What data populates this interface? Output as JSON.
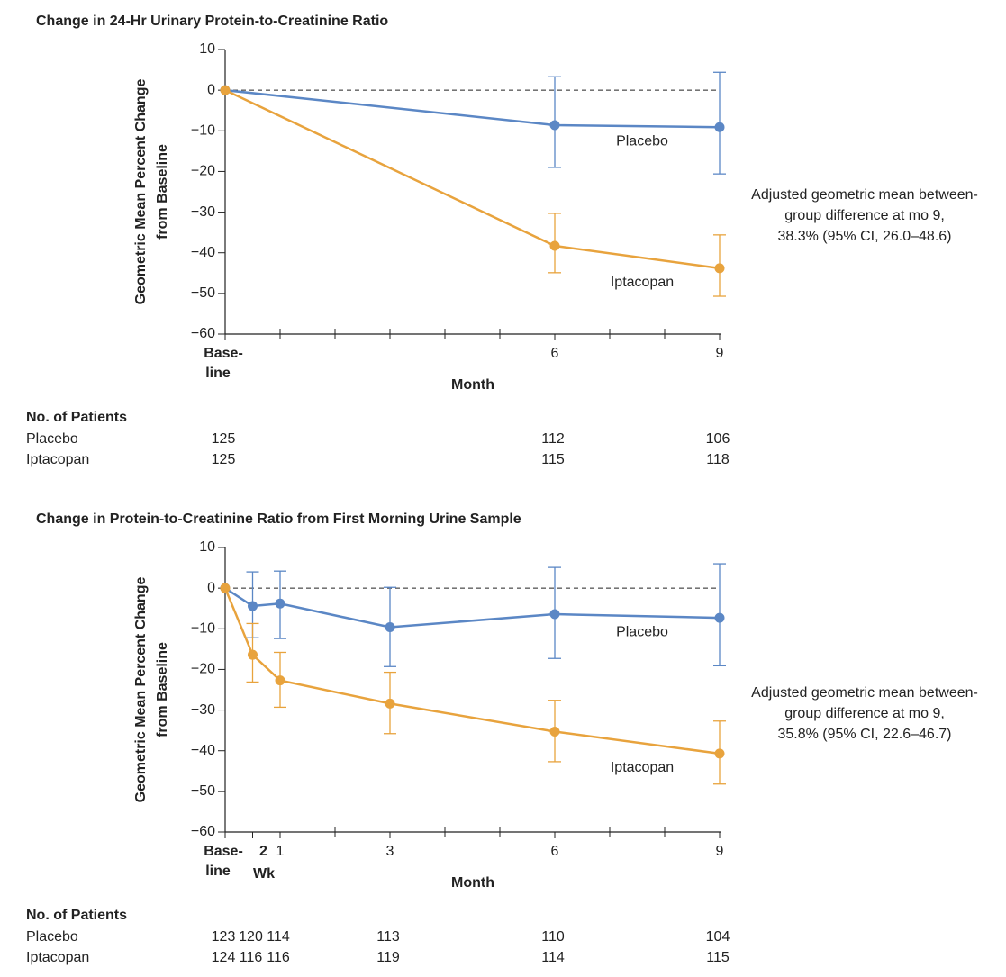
{
  "chart_data": [
    {
      "type": "line",
      "title": "Change in 24-Hr Urinary Protein-to-Creatinine Ratio",
      "ylabel": [
        "Geometric Mean Percent Change",
        "from Baseline"
      ],
      "xlabel": "Month",
      "xlim": [
        0,
        9
      ],
      "ylim": [
        -60,
        10
      ],
      "yticks": [
        10,
        0,
        {
          "value": -10,
          "label": "−10"
        },
        {
          "value": -20,
          "label": "−20"
        },
        {
          "value": -30,
          "label": "−30"
        },
        {
          "value": -40,
          "label": "−40"
        },
        {
          "value": -50,
          "label": "−50"
        },
        {
          "value": -60,
          "label": "−60"
        }
      ],
      "xticks": [
        {
          "value": 0,
          "label": [
            "Base-",
            "line"
          ]
        },
        6,
        9
      ],
      "xminor_ticks": [
        1,
        2,
        3,
        4,
        5,
        7,
        8
      ],
      "reference_line": 0,
      "x": [
        0,
        6,
        9
      ],
      "series": [
        {
          "name": "Placebo",
          "color": "#5b87c5",
          "values": [
            0,
            -8.6,
            -9.1
          ],
          "upper": [
            null,
            3.3,
            4.4
          ],
          "lower": [
            null,
            -19.0,
            -20.6
          ]
        },
        {
          "name": "Iptacopan",
          "color": "#e8a33d",
          "values": [
            0,
            -38.3,
            -43.8
          ],
          "upper": [
            null,
            -30.3,
            -35.6
          ],
          "lower": [
            null,
            -44.9,
            -50.7
          ]
        }
      ],
      "annotation": [
        "Adjusted geometric mean between-",
        "group difference at mo 9,",
        "38.3% (95% CI, 26.0–48.6)"
      ],
      "at_risk": {
        "title": "No. of Patients",
        "x": [
          0,
          6,
          9
        ],
        "rows": [
          {
            "name": "Placebo",
            "values": [
              125,
              112,
              106
            ]
          },
          {
            "name": "Iptacopan",
            "values": [
              125,
              115,
              118
            ]
          }
        ]
      }
    },
    {
      "type": "line",
      "title": "Change in Protein-to-Creatinine Ratio from First Morning Urine Sample",
      "ylabel": [
        "Geometric Mean Percent Change",
        "from Baseline"
      ],
      "xlabel": "Month",
      "xlim": [
        0,
        9
      ],
      "ylim": [
        -60,
        10
      ],
      "yticks": [
        10,
        0,
        {
          "value": -10,
          "label": "−10"
        },
        {
          "value": -20,
          "label": "−20"
        },
        {
          "value": -30,
          "label": "−30"
        },
        {
          "value": -40,
          "label": "−40"
        },
        {
          "value": -50,
          "label": "−50"
        },
        {
          "value": -60,
          "label": "−60"
        }
      ],
      "xticks": [
        {
          "value": 0,
          "label": [
            "Base-",
            "line"
          ]
        },
        {
          "value": 0.5,
          "label": "2"
        },
        1,
        3,
        6,
        9
      ],
      "xminor_ticks": [
        2,
        4,
        5,
        7,
        8
      ],
      "week_label": "Wk",
      "reference_line": 0,
      "x": [
        0,
        0.5,
        1,
        3,
        6,
        9
      ],
      "series": [
        {
          "name": "Placebo",
          "color": "#5b87c5",
          "values": [
            0,
            -4.4,
            -3.8,
            -9.6,
            -6.4,
            -7.3
          ],
          "upper": [
            null,
            4.0,
            4.2,
            0.2,
            5.1,
            6.0
          ],
          "lower": [
            null,
            -12.2,
            -12.4,
            -19.3,
            -17.3,
            -19.1
          ]
        },
        {
          "name": "Iptacopan",
          "color": "#e8a33d",
          "values": [
            0,
            -16.4,
            -22.7,
            -28.4,
            -35.3,
            -40.7
          ],
          "upper": [
            null,
            -8.7,
            -15.8,
            -20.7,
            -27.6,
            -32.7
          ],
          "lower": [
            null,
            -23.1,
            -29.3,
            -35.8,
            -42.7,
            -48.2
          ]
        }
      ],
      "annotation": [
        "Adjusted geometric mean between-",
        "group difference at mo 9,",
        "35.8% (95% CI, 22.6–46.7)"
      ],
      "at_risk": {
        "title": "No. of Patients",
        "x": [
          0,
          0.5,
          1,
          3,
          6,
          9
        ],
        "rows": [
          {
            "name": "Placebo",
            "values": [
              123,
              120,
              114,
              113,
              110,
              104
            ]
          },
          {
            "name": "Iptacopan",
            "values": [
              124,
              116,
              116,
              119,
              114,
              115
            ]
          }
        ]
      }
    }
  ]
}
